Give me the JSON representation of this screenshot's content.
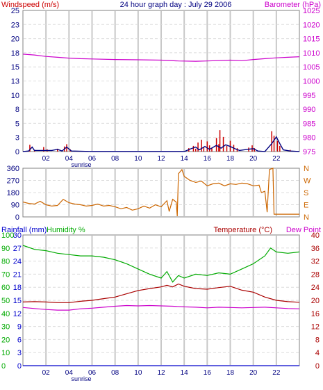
{
  "header": {
    "title": "24 hour graph day : July 29 2006",
    "left_label": "Windspeed (m/s)",
    "right_label": "Barometer (hPa)"
  },
  "sunrise_label": "sunrise",
  "colors": {
    "windspeed": "#cc0000",
    "gust": "#000080",
    "barometer": "#cc00cc",
    "wind_direction": "#cc6600",
    "rainfall": "#0000cc",
    "humidity": "#00aa00",
    "temperature": "#aa0000",
    "dew_point": "#cc00cc",
    "grid": "#c8c8c8",
    "gridline_alt": "#dcdcdc"
  },
  "chart_data": [
    {
      "type": "line",
      "name": "wind-barometer",
      "x_ticks": [
        "02",
        "04",
        "06",
        "08",
        "10",
        "12",
        "14",
        "16",
        "18",
        "20",
        "22"
      ],
      "x_range": [
        0,
        24
      ],
      "y_left": {
        "label": "Windspeed (m/s)",
        "ticks": [
          "0",
          "3",
          "5",
          "8",
          "10",
          "13",
          "15",
          "18",
          "20",
          "23",
          "25"
        ],
        "range": [
          0,
          25
        ]
      },
      "y_right": {
        "label": "Barometer (hPa)",
        "ticks": [
          "975",
          "980",
          "985",
          "990",
          "995",
          "1000",
          "1005",
          "1010",
          "1015",
          "1020",
          "1025"
        ],
        "range": [
          975,
          1025
        ]
      },
      "series": [
        {
          "key": "barometer",
          "axis": "right",
          "points": [
            [
              0,
              1009.5
            ],
            [
              1,
              1009.2
            ],
            [
              2,
              1008.7
            ],
            [
              3,
              1008.4
            ],
            [
              4,
              1008.1
            ],
            [
              5,
              1007.9
            ],
            [
              6,
              1007.8
            ],
            [
              8,
              1007.6
            ],
            [
              10,
              1007.5
            ],
            [
              12,
              1007.4
            ],
            [
              13.5,
              1007.1
            ],
            [
              15,
              1007.0
            ],
            [
              16,
              1007.1
            ],
            [
              18,
              1007.4
            ],
            [
              19,
              1007.2
            ],
            [
              20,
              1007.6
            ],
            [
              21,
              1007.9
            ],
            [
              22,
              1008.2
            ],
            [
              23,
              1008.4
            ],
            [
              24,
              1008.6
            ]
          ]
        },
        {
          "key": "windspeed",
          "axis": "left",
          "render": "spikes",
          "points": [
            [
              0.6,
              1.2
            ],
            [
              1.0,
              0.3
            ],
            [
              1.8,
              0.8
            ],
            [
              2.1,
              0.4
            ],
            [
              3.0,
              0.5
            ],
            [
              3.6,
              0.9
            ],
            [
              3.8,
              1.3
            ],
            [
              4.1,
              0.4
            ],
            [
              14.4,
              0.6
            ],
            [
              14.8,
              1.0
            ],
            [
              15.0,
              0.5
            ],
            [
              15.2,
              1.6
            ],
            [
              15.5,
              2.1
            ],
            [
              15.7,
              0.7
            ],
            [
              16.0,
              1.8
            ],
            [
              16.2,
              1.1
            ],
            [
              16.4,
              0.6
            ],
            [
              16.8,
              2.4
            ],
            [
              17.0,
              1.3
            ],
            [
              17.1,
              3.8
            ],
            [
              17.4,
              2.6
            ],
            [
              17.7,
              1.0
            ],
            [
              18.0,
              1.9
            ],
            [
              18.3,
              1.2
            ],
            [
              18.6,
              0.6
            ],
            [
              19.6,
              0.7
            ],
            [
              19.9,
              1.1
            ],
            [
              20.1,
              0.6
            ],
            [
              21.6,
              3.6
            ],
            [
              21.8,
              2.8
            ],
            [
              22.1,
              1.9
            ],
            [
              22.3,
              1.0
            ],
            [
              23.2,
              0.3
            ]
          ]
        },
        {
          "key": "gust",
          "axis": "left",
          "points": [
            [
              0,
              0
            ],
            [
              0.5,
              0.1
            ],
            [
              0.8,
              0.8
            ],
            [
              1.0,
              0.2
            ],
            [
              2.5,
              0.2
            ],
            [
              3.0,
              0.4
            ],
            [
              3.4,
              0.1
            ],
            [
              3.8,
              0.8
            ],
            [
              4.2,
              0.1
            ],
            [
              6,
              0
            ],
            [
              14,
              0
            ],
            [
              14.6,
              0.5
            ],
            [
              15.0,
              0.8
            ],
            [
              15.3,
              0.3
            ],
            [
              15.8,
              0.9
            ],
            [
              16.2,
              0.4
            ],
            [
              16.8,
              1.1
            ],
            [
              17.2,
              0.6
            ],
            [
              17.6,
              1.2
            ],
            [
              18.0,
              0.9
            ],
            [
              18.4,
              0.5
            ],
            [
              18.8,
              0.2
            ],
            [
              19.5,
              0.4
            ],
            [
              20.0,
              0.5
            ],
            [
              20.4,
              0.1
            ],
            [
              21,
              0
            ],
            [
              21.6,
              1.4
            ],
            [
              22.0,
              2.6
            ],
            [
              22.3,
              1.4
            ],
            [
              22.6,
              0.3
            ],
            [
              23.2,
              0.1
            ],
            [
              24,
              0
            ]
          ]
        }
      ]
    },
    {
      "type": "line",
      "name": "wind-direction",
      "x_range": [
        0,
        24
      ],
      "y_left": {
        "ticks": [
          "0",
          "90",
          "180",
          "270",
          "360"
        ],
        "range": [
          0,
          360
        ]
      },
      "y_right": {
        "ticks": [
          "N",
          "E",
          "S",
          "W",
          "N"
        ]
      },
      "series": [
        {
          "key": "wind_direction",
          "points": [
            [
              0,
              110
            ],
            [
              0.5,
              100
            ],
            [
              1,
              95
            ],
            [
              1.5,
              115
            ],
            [
              2,
              90
            ],
            [
              2.5,
              80
            ],
            [
              3,
              85
            ],
            [
              3.5,
              130
            ],
            [
              4,
              105
            ],
            [
              4.5,
              95
            ],
            [
              5,
              90
            ],
            [
              5.5,
              80
            ],
            [
              6,
              85
            ],
            [
              6.5,
              95
            ],
            [
              7,
              80
            ],
            [
              7.5,
              85
            ],
            [
              8,
              75
            ],
            [
              8.5,
              60
            ],
            [
              9,
              70
            ],
            [
              9.5,
              50
            ],
            [
              10,
              60
            ],
            [
              10.5,
              80
            ],
            [
              11,
              65
            ],
            [
              11.5,
              90
            ],
            [
              12,
              75
            ],
            [
              12.5,
              120
            ],
            [
              12.7,
              40
            ],
            [
              13,
              130
            ],
            [
              13.3,
              110
            ],
            [
              13.4,
              5
            ],
            [
              13.5,
              320
            ],
            [
              13.8,
              350
            ],
            [
              14,
              300
            ],
            [
              14.5,
              270
            ],
            [
              15,
              255
            ],
            [
              15.5,
              265
            ],
            [
              16,
              230
            ],
            [
              16.5,
              245
            ],
            [
              17,
              250
            ],
            [
              17.5,
              230
            ],
            [
              18,
              245
            ],
            [
              18.5,
              240
            ],
            [
              19,
              250
            ],
            [
              19.5,
              245
            ],
            [
              20,
              230
            ],
            [
              20.5,
              235
            ],
            [
              20.7,
              180
            ],
            [
              21,
              190
            ],
            [
              21.2,
              35
            ],
            [
              21.4,
              350
            ],
            [
              21.7,
              360
            ],
            [
              21.8,
              20
            ],
            [
              24,
              20
            ]
          ]
        }
      ]
    },
    {
      "type": "line",
      "name": "rain-humidity-temp",
      "x_ticks": [
        "02",
        "04",
        "06",
        "08",
        "10",
        "12",
        "14",
        "16",
        "18",
        "20",
        "22"
      ],
      "x_range": [
        0,
        24
      ],
      "y_rain": {
        "label": "Rainfall (mm)",
        "ticks": [
          "0",
          "3",
          "6",
          "9",
          "12",
          "15",
          "18",
          "21",
          "24",
          "27",
          "30"
        ],
        "range": [
          0,
          30
        ]
      },
      "y_humidity": {
        "label": "Humidity %",
        "ticks": [
          "0",
          "10",
          "20",
          "30",
          "40",
          "50",
          "60",
          "70",
          "80",
          "90",
          "100"
        ],
        "range": [
          0,
          100
        ]
      },
      "y_temp": {
        "label": "Temperature (°C)",
        "ticks": [
          "0",
          "4",
          "8",
          "12",
          "16",
          "20",
          "24",
          "28",
          "32",
          "36",
          "40"
        ],
        "range": [
          0,
          40
        ]
      },
      "y_dew_label": "Dew Point",
      "series": [
        {
          "key": "humidity",
          "axis": "humidity",
          "points": [
            [
              0,
              92
            ],
            [
              1,
              89
            ],
            [
              2,
              88
            ],
            [
              3,
              86
            ],
            [
              4,
              85
            ],
            [
              5,
              84
            ],
            [
              6,
              84
            ],
            [
              7,
              83
            ],
            [
              8,
              81
            ],
            [
              9,
              78
            ],
            [
              10,
              74
            ],
            [
              11,
              70
            ],
            [
              12,
              67
            ],
            [
              12.5,
              72
            ],
            [
              13,
              64
            ],
            [
              13.5,
              69
            ],
            [
              14,
              67
            ],
            [
              15,
              70
            ],
            [
              16,
              69
            ],
            [
              17,
              71
            ],
            [
              18,
              70
            ],
            [
              19,
              74
            ],
            [
              20,
              78
            ],
            [
              21,
              84
            ],
            [
              21.5,
              90
            ],
            [
              22,
              87
            ],
            [
              23,
              86
            ],
            [
              24,
              87
            ]
          ]
        },
        {
          "key": "temperature",
          "axis": "temp",
          "points": [
            [
              0,
              19.5
            ],
            [
              1,
              19.6
            ],
            [
              2,
              19.5
            ],
            [
              3,
              19.3
            ],
            [
              4,
              19.3
            ],
            [
              5,
              19.7
            ],
            [
              6,
              20.0
            ],
            [
              7,
              20.5
            ],
            [
              8,
              21.0
            ],
            [
              9,
              22.0
            ],
            [
              10,
              23.0
            ],
            [
              11,
              23.6
            ],
            [
              12,
              24.1
            ],
            [
              12.5,
              24.6
            ],
            [
              13,
              24.1
            ],
            [
              13.5,
              25.0
            ],
            [
              14,
              24.3
            ],
            [
              15,
              23.6
            ],
            [
              16,
              23.4
            ],
            [
              17,
              23.9
            ],
            [
              18,
              24.3
            ],
            [
              19,
              23.1
            ],
            [
              20,
              22.5
            ],
            [
              21,
              21.0
            ],
            [
              22,
              20.0
            ],
            [
              23,
              19.6
            ],
            [
              24,
              19.4
            ]
          ]
        },
        {
          "key": "dew_point",
          "axis": "temp",
          "points": [
            [
              0,
              17.8
            ],
            [
              1,
              17.5
            ],
            [
              2,
              17.2
            ],
            [
              3,
              17.0
            ],
            [
              4,
              17.0
            ],
            [
              5,
              17.4
            ],
            [
              6,
              17.6
            ],
            [
              7,
              17.9
            ],
            [
              8,
              18.2
            ],
            [
              9,
              18.4
            ],
            [
              10,
              18.3
            ],
            [
              11,
              18.4
            ],
            [
              12,
              18.3
            ],
            [
              13,
              18.2
            ],
            [
              14,
              18.0
            ],
            [
              15,
              17.9
            ],
            [
              16,
              17.7
            ],
            [
              17,
              17.9
            ],
            [
              18,
              17.8
            ],
            [
              19,
              17.7
            ],
            [
              20,
              17.8
            ],
            [
              21,
              17.9
            ],
            [
              22,
              17.7
            ],
            [
              23,
              17.5
            ],
            [
              24,
              17.4
            ]
          ]
        },
        {
          "key": "rainfall",
          "axis": "rain",
          "points": [
            [
              0,
              0
            ],
            [
              24,
              0
            ]
          ]
        }
      ]
    }
  ]
}
